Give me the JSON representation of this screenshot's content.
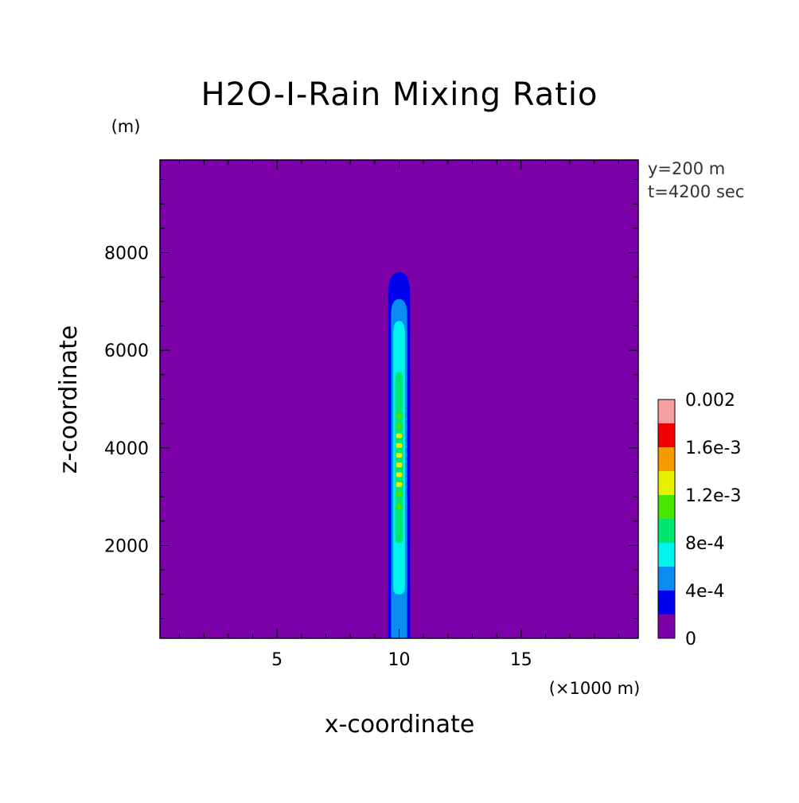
{
  "chart_data": {
    "type": "heatmap",
    "title": "H2O-I-Rain Mixing Ratio",
    "xlabel": "x-coordinate",
    "ylabel": "z-coordinate",
    "x_unit_label": "(×1000 m)",
    "y_unit_label": "(m)",
    "annotations": [
      "y=200 m",
      "t=4200 sec"
    ],
    "xlim": [
      0.2,
      19.8
    ],
    "ylim": [
      100,
      9900
    ],
    "x_ticks": [
      5,
      10,
      15
    ],
    "x_tick_labels": [
      "5",
      "10",
      "15"
    ],
    "y_ticks": [
      2000,
      4000,
      6000,
      8000
    ],
    "y_tick_labels": [
      "2000",
      "4000",
      "6000",
      "8000"
    ],
    "colorbar": {
      "levels": [
        0,
        0.0002,
        0.0004,
        0.0006,
        0.0008,
        0.001,
        0.0012,
        0.0014,
        0.0016,
        0.0018,
        0.002
      ],
      "tick_values": [
        0,
        0.0004,
        0.0008,
        0.0012,
        0.0016,
        0.002
      ],
      "tick_labels": [
        "0",
        "4e-4",
        "8e-4",
        "1.2e-3",
        "1.6e-3",
        "0.002"
      ],
      "colors": [
        "#7b00a8",
        "#0000ee",
        "#0a8cf0",
        "#00f4ee",
        "#00e66e",
        "#46e600",
        "#e6f000",
        "#f59a00",
        "#f00000",
        "#f4a0a0"
      ]
    },
    "contours": [
      {
        "min_value": 0.0002,
        "z_bottom": 100,
        "z_top": 7600,
        "x_center": 10,
        "half_width": 0.45
      },
      {
        "min_value": 0.0004,
        "z_bottom": 100,
        "z_top": 7050,
        "x_center": 10,
        "half_width": 0.33
      },
      {
        "min_value": 0.0006,
        "z_bottom": 1000,
        "z_top": 6600,
        "x_center": 10,
        "half_width": 0.24
      },
      {
        "min_value": 0.0008,
        "z_bottom": 2050,
        "z_top": 5550,
        "x_center": 10,
        "half_width": 0.16
      }
    ],
    "peak_band_values": [
      {
        "z": 2350,
        "value": 0.0009
      },
      {
        "z": 2550,
        "value": 0.0009
      },
      {
        "z": 2800,
        "value": 0.001
      },
      {
        "z": 3050,
        "value": 0.0011
      },
      {
        "z": 3250,
        "value": 0.0012
      },
      {
        "z": 3450,
        "value": 0.0013
      },
      {
        "z": 3650,
        "value": 0.0013
      },
      {
        "z": 3850,
        "value": 0.0013
      },
      {
        "z": 4050,
        "value": 0.0013
      },
      {
        "z": 4250,
        "value": 0.0012
      },
      {
        "z": 4450,
        "value": 0.0011
      },
      {
        "z": 4650,
        "value": 0.001
      },
      {
        "z": 4900,
        "value": 0.0009
      },
      {
        "z": 5100,
        "value": 0.0009
      },
      {
        "z": 5300,
        "value": 0.0009
      },
      {
        "z": 5500,
        "value": 0.0009
      }
    ]
  }
}
